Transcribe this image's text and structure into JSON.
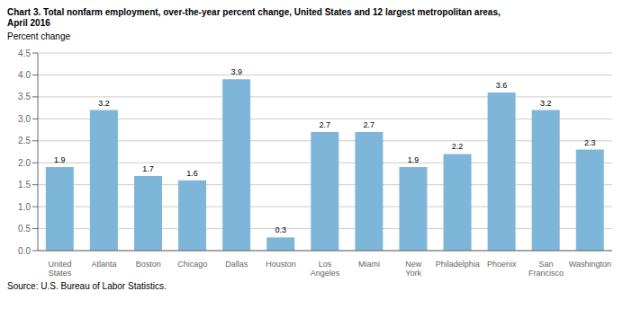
{
  "chart_data": {
    "type": "bar",
    "title": "Chart 3. Total nonfarm employment, over-the-year percent change, United States and 12 largest metropolitan areas,\nApril 2016",
    "y_label": "Percent change",
    "source": "Source: U.S. Bureau of Labor Statistics.",
    "categories": [
      "United\nStates",
      "Atlanta",
      "Boston",
      "Chicago",
      "Dallas",
      "Houston",
      "Los\nAngeles",
      "Miami",
      "New\nYork",
      "Philadelphia",
      "Phoenix",
      "San\nFrancisco",
      "Washington"
    ],
    "values": [
      1.9,
      3.2,
      1.7,
      1.6,
      3.9,
      0.3,
      2.7,
      2.7,
      1.9,
      2.2,
      3.6,
      3.2,
      2.3
    ],
    "color": "#7EB6D9",
    "ylim": [
      0,
      4.5
    ],
    "yticks": [
      {
        "value": 0,
        "label": "0.0"
      },
      0.5,
      {
        "value": 1,
        "label": "1.0"
      },
      1.5,
      {
        "value": 2,
        "label": "2.0"
      },
      2.5,
      {
        "value": 3,
        "label": "3.0"
      },
      3.5,
      {
        "value": 4,
        "label": "4.0"
      },
      4.5
    ],
    "grid": true,
    "data_labels": true
  }
}
